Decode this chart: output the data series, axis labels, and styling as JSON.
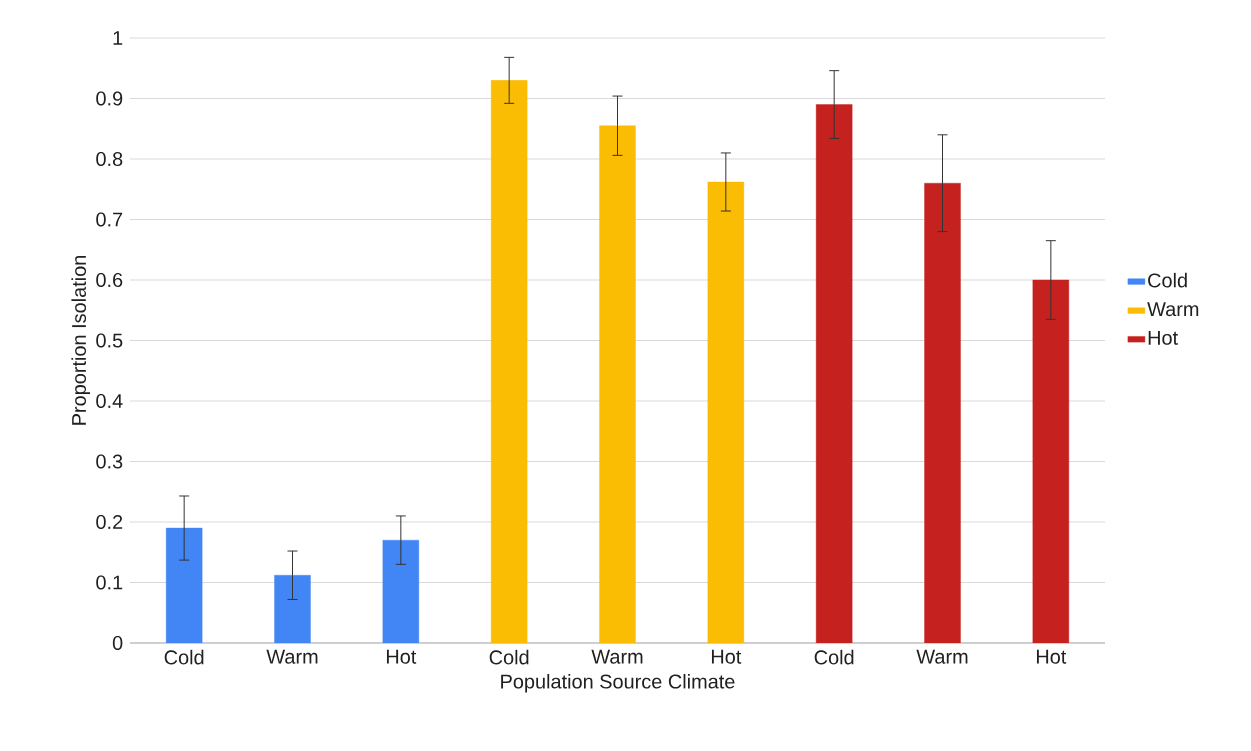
{
  "chart_data": {
    "type": "bar",
    "xlabel": "Population Source Climate",
    "ylabel": "Proportion Isolation",
    "categories": [
      "Cold",
      "Warm",
      "Hot",
      "Cold",
      "Warm",
      "Hot",
      "Cold",
      "Warm",
      "Hot"
    ],
    "series": [
      {
        "name": "Cold",
        "color": "#4285f4",
        "values": [
          0.19,
          0.112,
          0.17,
          null,
          null,
          null,
          null,
          null,
          null
        ],
        "errors": [
          0.053,
          0.04,
          0.04,
          null,
          null,
          null,
          null,
          null,
          null
        ]
      },
      {
        "name": "Warm",
        "color": "#fbbc04",
        "values": [
          null,
          null,
          null,
          0.93,
          0.855,
          0.762,
          null,
          null,
          null
        ],
        "errors": [
          null,
          null,
          null,
          0.038,
          0.049,
          0.048,
          null,
          null,
          null
        ]
      },
      {
        "name": "Hot",
        "color": "#c5221f",
        "values": [
          null,
          null,
          null,
          null,
          null,
          null,
          0.89,
          0.76,
          0.6
        ],
        "errors": [
          null,
          null,
          null,
          null,
          null,
          null,
          0.056,
          0.08,
          0.065
        ]
      }
    ],
    "ylim": [
      0,
      1
    ],
    "yticks": [
      0,
      0.1,
      0.2,
      0.3,
      0.4,
      0.5,
      0.6,
      0.7,
      0.8,
      0.9,
      1
    ],
    "grid": "y",
    "legend": "right"
  }
}
